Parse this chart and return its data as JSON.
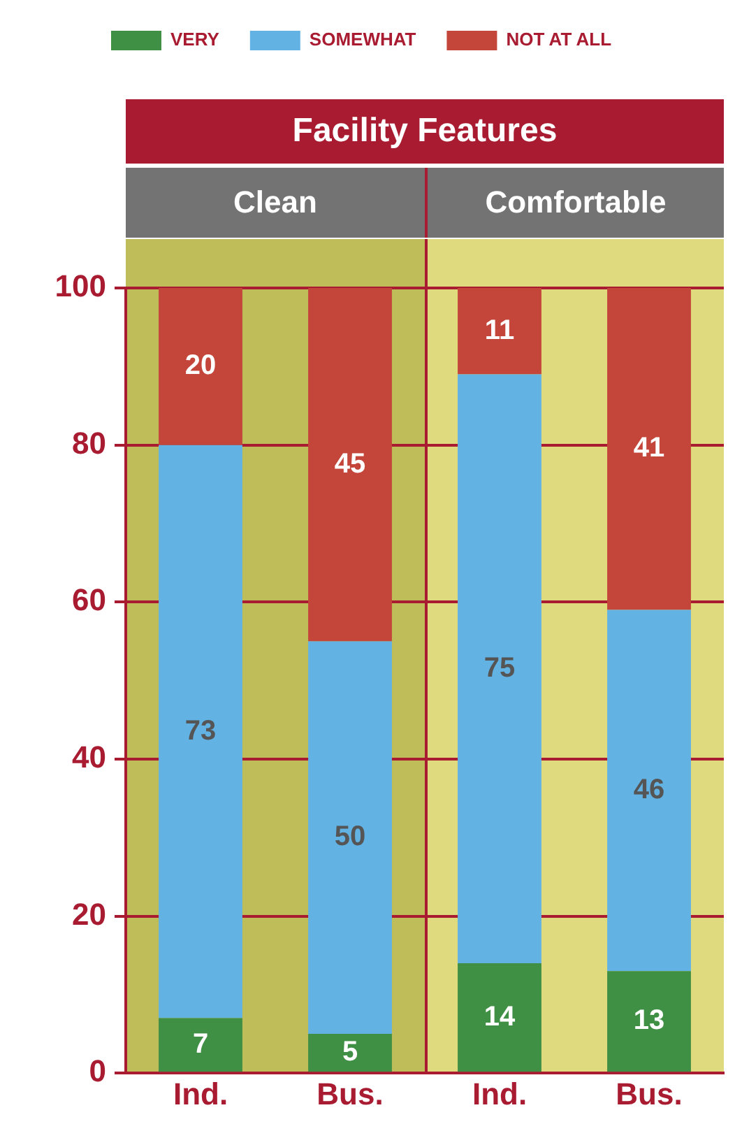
{
  "chart_data": {
    "type": "bar",
    "title": "Facility Features",
    "annotations": [
      "Clean",
      "Comfortable"
    ],
    "categories": [
      "Ind.",
      "Bus.",
      "Ind.",
      "Bus."
    ],
    "series": [
      {
        "name": "VERY",
        "color": "#3f8f45",
        "values": [
          7,
          5,
          14,
          13
        ]
      },
      {
        "name": "SOMEWHAT",
        "color": "#62b2e4",
        "values": [
          73,
          50,
          75,
          46
        ]
      },
      {
        "name": "NOT AT ALL",
        "color": "#c4463a",
        "values": [
          20,
          45,
          11,
          41
        ]
      }
    ],
    "stacked": true,
    "data_labels": true,
    "ylim": [
      0,
      100
    ],
    "yticks": [
      0,
      20,
      40,
      60,
      80,
      100
    ],
    "grid": "y",
    "legend": "top"
  }
}
